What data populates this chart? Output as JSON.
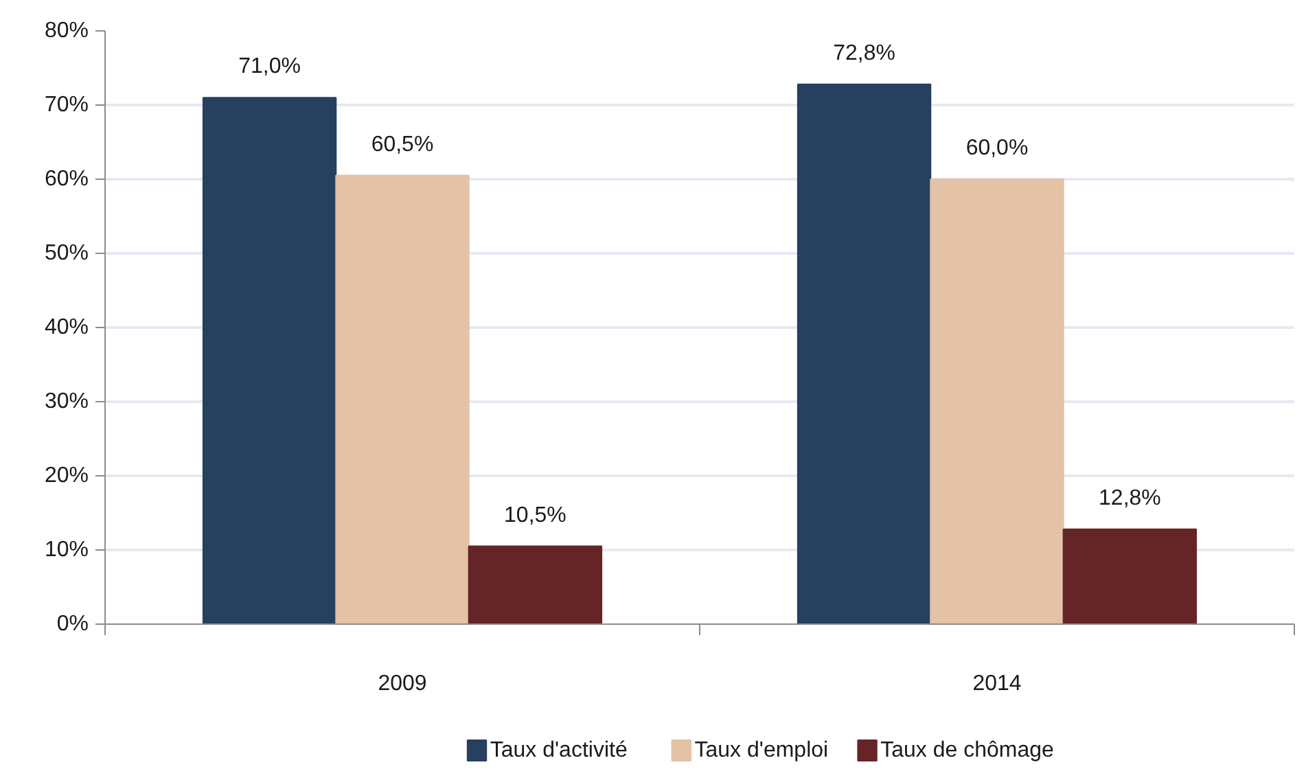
{
  "chart_data": {
    "type": "bar",
    "categories": [
      "2009",
      "2014"
    ],
    "series": [
      {
        "name": "Taux d'activité",
        "color": "#27405f",
        "values": [
          71.0,
          72.8
        ],
        "value_labels": [
          "71,0%",
          "72,8%"
        ]
      },
      {
        "name": "Taux d'emploi",
        "color": "#e3c2a5",
        "values": [
          60.5,
          60.0
        ],
        "value_labels": [
          "60,5%",
          "60,0%"
        ]
      },
      {
        "name": "Taux de chômage",
        "color": "#652527",
        "values": [
          10.5,
          12.8
        ],
        "value_labels": [
          "10,5%",
          "12,8%"
        ]
      }
    ],
    "ylim": [
      0,
      80
    ],
    "yticks": [
      {
        "value": 0,
        "label": "0%"
      },
      {
        "value": 10,
        "label": "10%"
      },
      {
        "value": 20,
        "label": "20%"
      },
      {
        "value": 30,
        "label": "30%"
      },
      {
        "value": 40,
        "label": "40%"
      },
      {
        "value": 50,
        "label": "50%"
      },
      {
        "value": 60,
        "label": "60%"
      },
      {
        "value": 70,
        "label": "70%"
      },
      {
        "value": 80,
        "label": "80%"
      }
    ],
    "grid": "y",
    "legend": "bottom"
  }
}
